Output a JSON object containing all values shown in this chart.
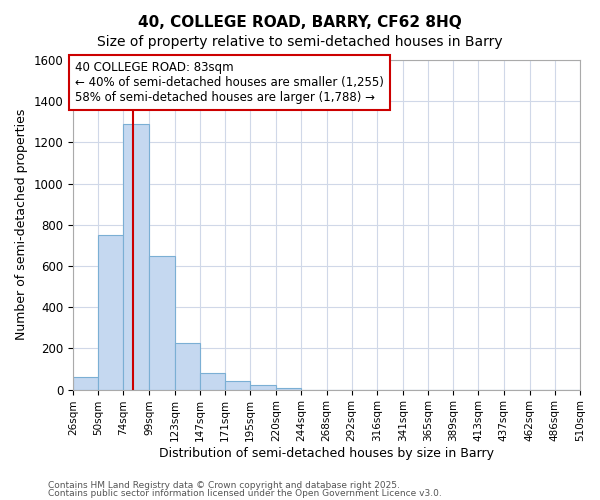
{
  "title": "40, COLLEGE ROAD, BARRY, CF62 8HQ",
  "subtitle": "Size of property relative to semi-detached houses in Barry",
  "xlabel": "Distribution of semi-detached houses by size in Barry",
  "ylabel": "Number of semi-detached properties",
  "bin_edges": [
    26,
    50,
    74,
    99,
    123,
    147,
    171,
    195,
    220,
    244,
    268,
    292,
    316,
    341,
    365,
    389,
    413,
    437,
    462,
    486,
    510
  ],
  "bar_heights": [
    62,
    750,
    1290,
    650,
    228,
    82,
    42,
    22,
    10,
    0,
    0,
    0,
    0,
    0,
    0,
    0,
    0,
    0,
    0,
    0
  ],
  "bar_color": "#c5d8f0",
  "bar_edge_color": "#7bafd4",
  "property_size": 83,
  "property_line_color": "#cc0000",
  "annotation_text": "40 COLLEGE ROAD: 83sqm\n← 40% of semi-detached houses are smaller (1,255)\n58% of semi-detached houses are larger (1,788) →",
  "annotation_box_color": "#ffffff",
  "annotation_box_edge": "#cc0000",
  "ylim": [
    0,
    1600
  ],
  "yticks": [
    0,
    200,
    400,
    600,
    800,
    1000,
    1200,
    1400,
    1600
  ],
  "tick_labels": [
    "26sqm",
    "50sqm",
    "74sqm",
    "99sqm",
    "123sqm",
    "147sqm",
    "171sqm",
    "195sqm",
    "220sqm",
    "244sqm",
    "268sqm",
    "292sqm",
    "316sqm",
    "341sqm",
    "365sqm",
    "389sqm",
    "413sqm",
    "437sqm",
    "462sqm",
    "486sqm",
    "510sqm"
  ],
  "footnote1": "Contains HM Land Registry data © Crown copyright and database right 2025.",
  "footnote2": "Contains public sector information licensed under the Open Government Licence v3.0.",
  "grid_color": "#d0d8e8",
  "background_color": "#ffffff",
  "title_fontsize": 11,
  "subtitle_fontsize": 10,
  "label_fontsize": 9,
  "tick_fontsize": 7.5,
  "annot_fontsize": 8.5
}
